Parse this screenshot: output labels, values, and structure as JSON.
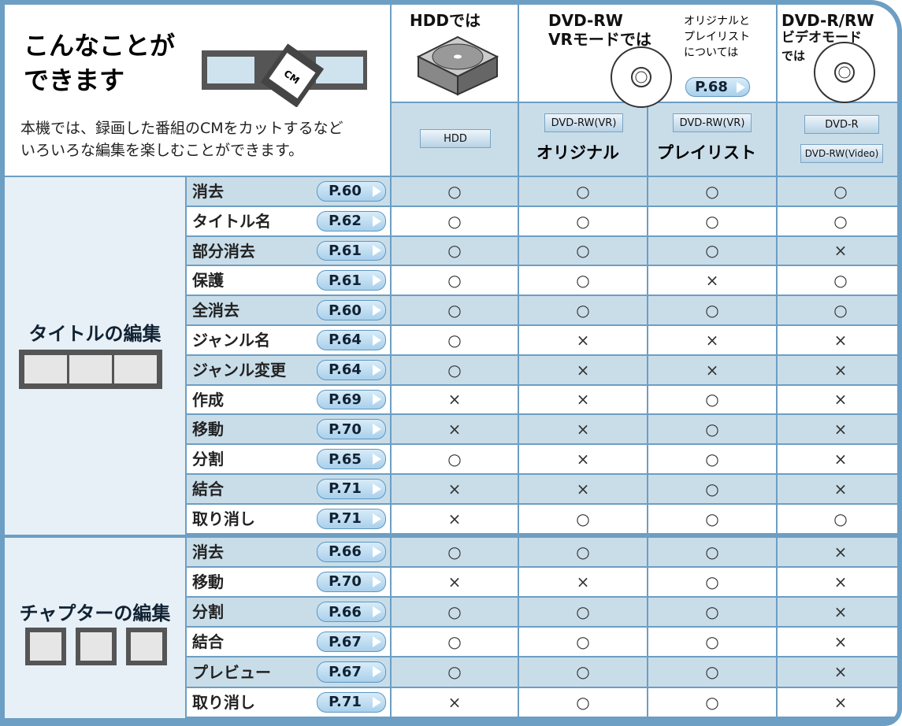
{
  "header": {
    "title_lines": [
      "こんなことが",
      "できます"
    ],
    "description_lines": [
      "本機では、録画した番組のCMをカットするなど",
      "いろいろな編集を楽しむことができます。"
    ],
    "icon_label": "CM"
  },
  "columns": {
    "hdd": {
      "title": "HDDでは",
      "badge": "HDD"
    },
    "dvd_rw_vr": {
      "title_lines": [
        "DVD-RW",
        "VRモードでは"
      ],
      "note_lines": [
        "オリジナルと",
        "プレイリスト",
        "については"
      ],
      "note_page": "P.68",
      "subcolumns": [
        {
          "badge": "DVD-RW(VR)",
          "label": "オリジナル"
        },
        {
          "badge": "DVD-RW(VR)",
          "label": "プレイリスト"
        }
      ]
    },
    "dvd_video": {
      "title_lines": [
        "DVD-R/RW",
        "ビデオモード",
        "では"
      ],
      "badges": [
        "DVD-R",
        "DVD-RW(Video)"
      ]
    }
  },
  "sections": [
    {
      "name": "タイトルの編集",
      "rows": [
        {
          "label": "消去",
          "page": "P.60",
          "marks": [
            "○",
            "○",
            "○",
            "○"
          ]
        },
        {
          "label": "タイトル名",
          "page": "P.62",
          "marks": [
            "○",
            "○",
            "○",
            "○"
          ]
        },
        {
          "label": "部分消去",
          "page": "P.61",
          "marks": [
            "○",
            "○",
            "○",
            "×"
          ]
        },
        {
          "label": "保護",
          "page": "P.61",
          "marks": [
            "○",
            "○",
            "×",
            "○"
          ]
        },
        {
          "label": "全消去",
          "page": "P.60",
          "marks": [
            "○",
            "○",
            "○",
            "○"
          ]
        },
        {
          "label": "ジャンル名",
          "page": "P.64",
          "marks": [
            "○",
            "×",
            "×",
            "×"
          ]
        },
        {
          "label": "ジャンル変更",
          "page": "P.64",
          "marks": [
            "○",
            "×",
            "×",
            "×"
          ]
        },
        {
          "label": "作成",
          "page": "P.69",
          "marks": [
            "×",
            "×",
            "○",
            "×"
          ]
        },
        {
          "label": "移動",
          "page": "P.70",
          "marks": [
            "×",
            "×",
            "○",
            "×"
          ]
        },
        {
          "label": "分割",
          "page": "P.65",
          "marks": [
            "○",
            "×",
            "○",
            "×"
          ]
        },
        {
          "label": "結合",
          "page": "P.71",
          "marks": [
            "×",
            "×",
            "○",
            "×"
          ]
        },
        {
          "label": "取り消し",
          "page": "P.71",
          "marks": [
            "×",
            "○",
            "○",
            "○"
          ]
        }
      ]
    },
    {
      "name": "チャプターの編集",
      "rows": [
        {
          "label": "消去",
          "page": "P.66",
          "marks": [
            "○",
            "○",
            "○",
            "×"
          ]
        },
        {
          "label": "移動",
          "page": "P.70",
          "marks": [
            "×",
            "×",
            "○",
            "×"
          ]
        },
        {
          "label": "分割",
          "page": "P.66",
          "marks": [
            "○",
            "○",
            "○",
            "×"
          ]
        },
        {
          "label": "結合",
          "page": "P.67",
          "marks": [
            "○",
            "○",
            "○",
            "×"
          ]
        },
        {
          "label": "プレビュー",
          "page": "P.67",
          "marks": [
            "○",
            "○",
            "○",
            "×"
          ]
        },
        {
          "label": "取り消し",
          "page": "P.71",
          "marks": [
            "×",
            "○",
            "○",
            "×"
          ]
        }
      ]
    }
  ]
}
